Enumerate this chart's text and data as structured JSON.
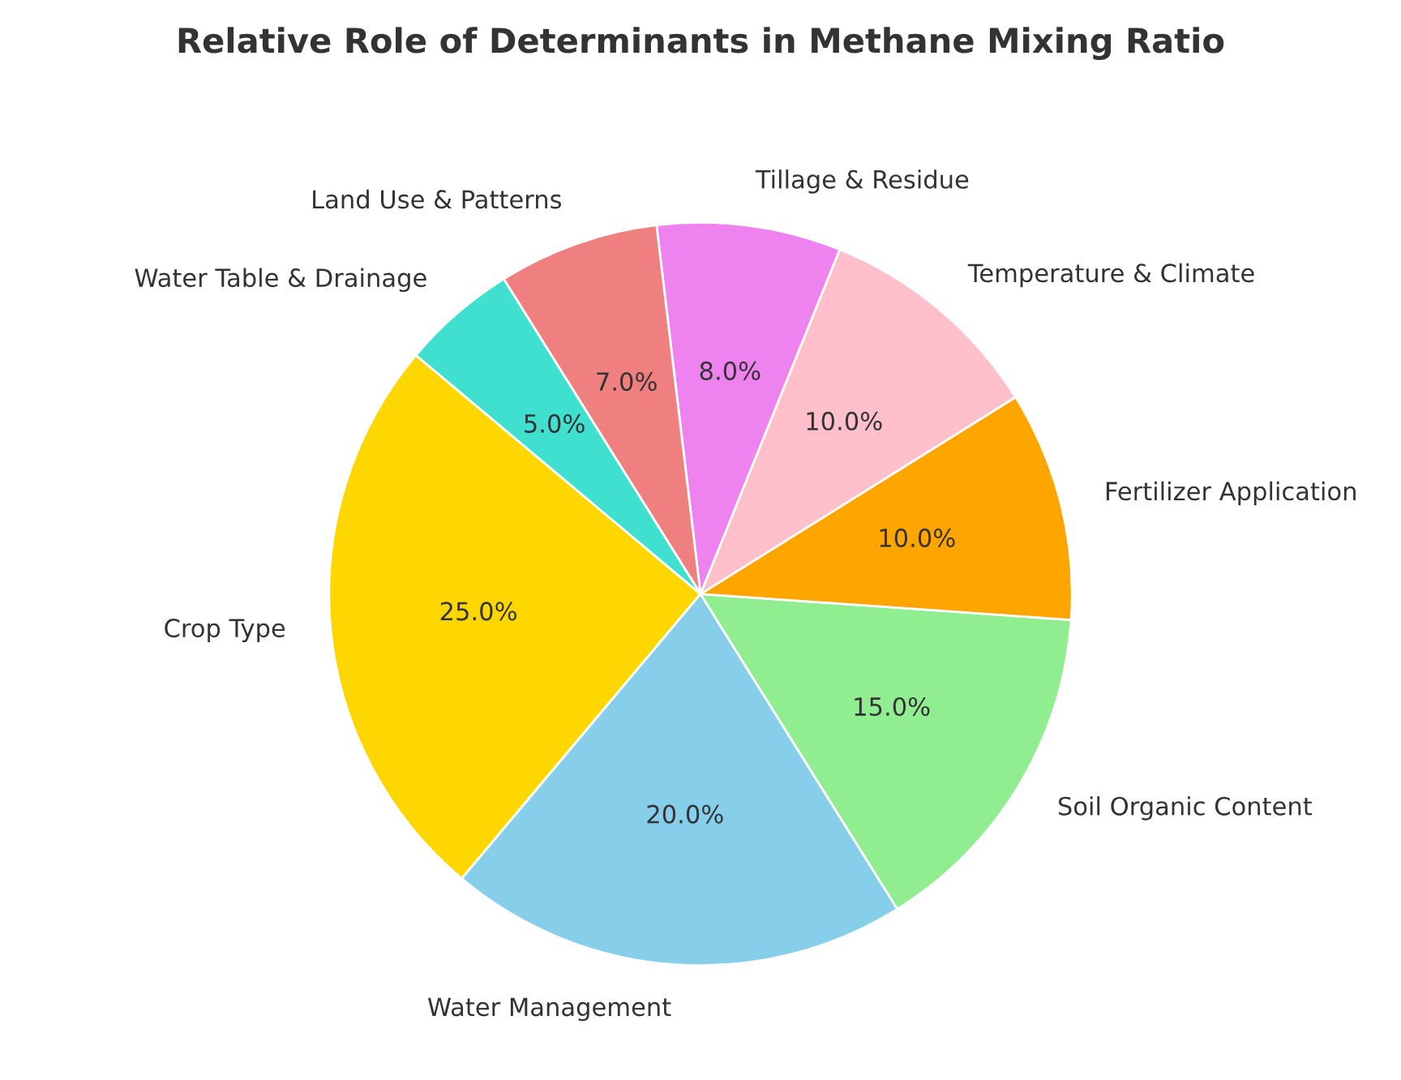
{
  "chart_data": {
    "type": "pie",
    "title": "Relative Role of Determinants in Methane Mixing Ratio",
    "categories": [
      "Crop Type",
      "Water Management",
      "Soil Organic Content",
      "Fertilizer Application",
      "Temperature & Climate",
      "Tillage & Residue",
      "Land Use & Patterns",
      "Water Table & Drainage"
    ],
    "values": [
      25,
      20,
      15,
      10,
      10,
      8,
      7,
      5
    ],
    "colors": [
      "#ffd700",
      "#87ceeb",
      "#90ee90",
      "#ffa500",
      "#ffc0cb",
      "#ee82ee",
      "#f08080",
      "#40e0d0"
    ],
    "value_labels": [
      "25.0%",
      "20.0%",
      "15.0%",
      "10.0%",
      "10.0%",
      "8.0%",
      "7.0%",
      "5.0%"
    ]
  }
}
